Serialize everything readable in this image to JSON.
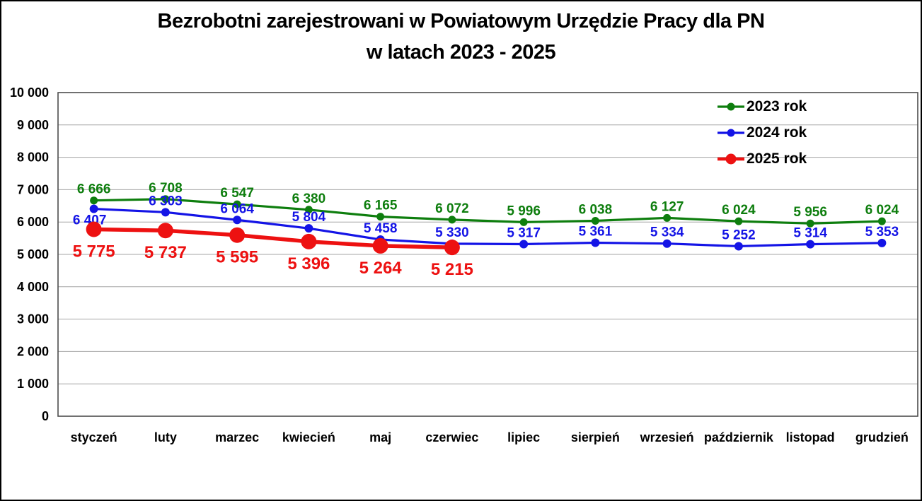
{
  "title": {
    "line1": "Bezrobotni zarejestrowani w Powiatowym Urzędzie Pracy dla PN",
    "line2": "w latach 2023 - 2025"
  },
  "style": {
    "background": "#ffffff",
    "frame_border": "#000000",
    "grid_color": "#a6a6a6",
    "plot_border_color": "#4d4d4d",
    "text_color": "#000000"
  },
  "chart_data": {
    "type": "line",
    "title": "Bezrobotni zarejestrowani w Powiatowym Urzędzie Pracy dla PN w latach 2023 - 2025",
    "xlabel": "",
    "ylabel": "",
    "ylim": [
      0,
      10000
    ],
    "y_step": 1000,
    "grid": "horizontal",
    "legend_position": "top-right",
    "categories": [
      "styczeń",
      "luty",
      "marzec",
      "kwiecień",
      "maj",
      "czerwiec",
      "lipiec",
      "sierpień",
      "wrzesień",
      "październik",
      "listopad",
      "grudzień"
    ],
    "y_ticks": [
      "0",
      "1 000",
      "2 000",
      "3 000",
      "4 000",
      "5 000",
      "6 000",
      "7 000",
      "8 000",
      "9 000",
      "10 000"
    ],
    "series": [
      {
        "name": "2023 rok",
        "color": "#0e7e0e",
        "values": [
          6666,
          6708,
          6547,
          6380,
          6165,
          6072,
          5996,
          6038,
          6127,
          6024,
          5956,
          6024
        ],
        "labels": [
          "6 666",
          "6 708",
          "6 547",
          "6 380",
          "6 165",
          "6 072",
          "5 996",
          "6 038",
          "6 127",
          "6 024",
          "5 956",
          "6 024"
        ]
      },
      {
        "name": "2024 rok",
        "color": "#1414e6",
        "values": [
          6407,
          6303,
          6064,
          5804,
          5458,
          5330,
          5317,
          5361,
          5334,
          5252,
          5314,
          5353
        ],
        "labels": [
          "6 407",
          "6 303",
          "6 064",
          "5 804",
          "5 458",
          "5 330",
          "5 317",
          "5 361",
          "5 334",
          "5 252",
          "5 314",
          "5 353"
        ]
      },
      {
        "name": "2025 rok",
        "color": "#ed1111",
        "values": [
          5775,
          5737,
          5595,
          5396,
          5264,
          5215
        ],
        "labels": [
          "5 775",
          "5 737",
          "5 595",
          "5 396",
          "5 264",
          "5 215"
        ]
      }
    ]
  }
}
